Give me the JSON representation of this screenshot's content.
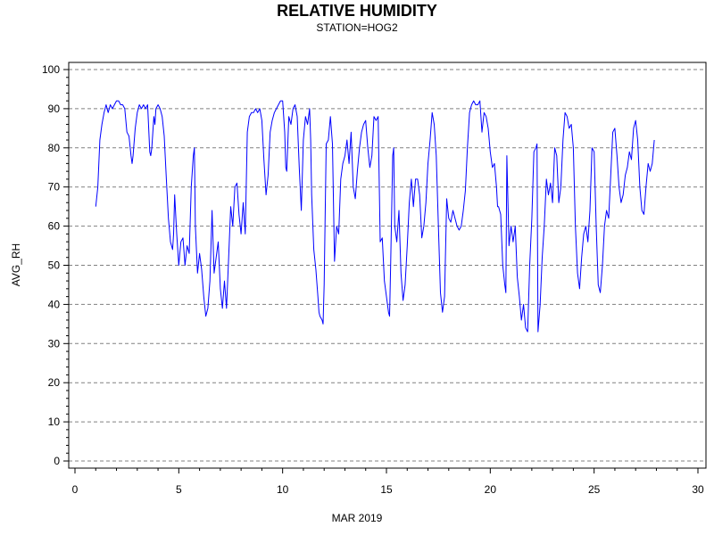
{
  "chart_data": {
    "type": "line",
    "title": "RELATIVE HUMIDITY",
    "subtitle": "STATION=HOG2",
    "xlabel": "MAR 2019",
    "ylabel": "AVG_RH",
    "xlim": [
      0,
      30
    ],
    "ylim": [
      0,
      100
    ],
    "x_ticks": [
      0,
      5,
      10,
      15,
      20,
      25,
      30
    ],
    "y_ticks": [
      0,
      10,
      20,
      30,
      40,
      50,
      60,
      70,
      80,
      90,
      100
    ],
    "grid": "horizontal dashed",
    "series": [
      {
        "color": "#0000ff",
        "points": [
          [
            1.0,
            65
          ],
          [
            1.1,
            70
          ],
          [
            1.2,
            82
          ],
          [
            1.3,
            86
          ],
          [
            1.4,
            89
          ],
          [
            1.5,
            91
          ],
          [
            1.6,
            89
          ],
          [
            1.7,
            91
          ],
          [
            1.8,
            90
          ],
          [
            1.9,
            91
          ],
          [
            2.0,
            92
          ],
          [
            2.1,
            92
          ],
          [
            2.2,
            91
          ],
          [
            2.3,
            91
          ],
          [
            2.4,
            90
          ],
          [
            2.5,
            84
          ],
          [
            2.6,
            83
          ],
          [
            2.7,
            78
          ],
          [
            2.75,
            76
          ],
          [
            2.8,
            78
          ],
          [
            2.9,
            85
          ],
          [
            3.0,
            89
          ],
          [
            3.1,
            91
          ],
          [
            3.2,
            90
          ],
          [
            3.3,
            91
          ],
          [
            3.4,
            90
          ],
          [
            3.5,
            91
          ],
          [
            3.6,
            79
          ],
          [
            3.65,
            78
          ],
          [
            3.7,
            80
          ],
          [
            3.8,
            88
          ],
          [
            3.85,
            86
          ],
          [
            3.9,
            90
          ],
          [
            4.0,
            91
          ],
          [
            4.1,
            90
          ],
          [
            4.2,
            88
          ],
          [
            4.3,
            83
          ],
          [
            4.4,
            72
          ],
          [
            4.5,
            62
          ],
          [
            4.6,
            56
          ],
          [
            4.7,
            54
          ],
          [
            4.75,
            58
          ],
          [
            4.8,
            68
          ],
          [
            4.9,
            58
          ],
          [
            5.0,
            50
          ],
          [
            5.1,
            56
          ],
          [
            5.2,
            57
          ],
          [
            5.3,
            50
          ],
          [
            5.4,
            55
          ],
          [
            5.5,
            53
          ],
          [
            5.6,
            70
          ],
          [
            5.7,
            78
          ],
          [
            5.75,
            80
          ],
          [
            5.8,
            60
          ],
          [
            5.9,
            48
          ],
          [
            6.0,
            53
          ],
          [
            6.1,
            49
          ],
          [
            6.2,
            42
          ],
          [
            6.3,
            37
          ],
          [
            6.4,
            39
          ],
          [
            6.5,
            46
          ],
          [
            6.6,
            64
          ],
          [
            6.7,
            48
          ],
          [
            6.8,
            52
          ],
          [
            6.9,
            56
          ],
          [
            7.0,
            44
          ],
          [
            7.1,
            39
          ],
          [
            7.2,
            46
          ],
          [
            7.3,
            39
          ],
          [
            7.4,
            52
          ],
          [
            7.5,
            65
          ],
          [
            7.6,
            60
          ],
          [
            7.7,
            70
          ],
          [
            7.8,
            71
          ],
          [
            7.9,
            63
          ],
          [
            8.0,
            58
          ],
          [
            8.1,
            66
          ],
          [
            8.2,
            58
          ],
          [
            8.3,
            84
          ],
          [
            8.4,
            88
          ],
          [
            8.5,
            89
          ],
          [
            8.6,
            89
          ],
          [
            8.7,
            90
          ],
          [
            8.8,
            89
          ],
          [
            8.9,
            90
          ],
          [
            9.0,
            87
          ],
          [
            9.1,
            77
          ],
          [
            9.2,
            68
          ],
          [
            9.3,
            73
          ],
          [
            9.4,
            84
          ],
          [
            9.5,
            87
          ],
          [
            9.6,
            89
          ],
          [
            9.7,
            90
          ],
          [
            9.8,
            91
          ],
          [
            9.9,
            92
          ],
          [
            10.0,
            92
          ],
          [
            10.1,
            84
          ],
          [
            10.15,
            75
          ],
          [
            10.2,
            74
          ],
          [
            10.3,
            88
          ],
          [
            10.4,
            86
          ],
          [
            10.5,
            90
          ],
          [
            10.6,
            91
          ],
          [
            10.7,
            88
          ],
          [
            10.8,
            75
          ],
          [
            10.9,
            64
          ],
          [
            11.0,
            82
          ],
          [
            11.1,
            88
          ],
          [
            11.2,
            86
          ],
          [
            11.3,
            90
          ],
          [
            11.35,
            82
          ],
          [
            11.4,
            68
          ],
          [
            11.5,
            54
          ],
          [
            11.6,
            49
          ],
          [
            11.7,
            42
          ],
          [
            11.75,
            38
          ],
          [
            11.8,
            37
          ],
          [
            11.9,
            36
          ],
          [
            11.95,
            35
          ],
          [
            12.0,
            45
          ],
          [
            12.1,
            81
          ],
          [
            12.2,
            82
          ],
          [
            12.3,
            88
          ],
          [
            12.4,
            81
          ],
          [
            12.5,
            51
          ],
          [
            12.6,
            60
          ],
          [
            12.7,
            58
          ],
          [
            12.8,
            72
          ],
          [
            12.9,
            76
          ],
          [
            13.0,
            78
          ],
          [
            13.1,
            82
          ],
          [
            13.2,
            76
          ],
          [
            13.3,
            84
          ],
          [
            13.4,
            70
          ],
          [
            13.5,
            67
          ],
          [
            13.6,
            74
          ],
          [
            13.7,
            80
          ],
          [
            13.8,
            84
          ],
          [
            13.9,
            86
          ],
          [
            14.0,
            87
          ],
          [
            14.1,
            80
          ],
          [
            14.2,
            75
          ],
          [
            14.3,
            78
          ],
          [
            14.4,
            88
          ],
          [
            14.5,
            87
          ],
          [
            14.6,
            88
          ],
          [
            14.7,
            56
          ],
          [
            14.8,
            57
          ],
          [
            14.9,
            46
          ],
          [
            15.0,
            42
          ],
          [
            15.1,
            38
          ],
          [
            15.15,
            37
          ],
          [
            15.2,
            50
          ],
          [
            15.3,
            78
          ],
          [
            15.35,
            80
          ],
          [
            15.4,
            60
          ],
          [
            15.5,
            56
          ],
          [
            15.6,
            64
          ],
          [
            15.7,
            48
          ],
          [
            15.8,
            41
          ],
          [
            15.9,
            45
          ],
          [
            16.0,
            55
          ],
          [
            16.1,
            66
          ],
          [
            16.2,
            72
          ],
          [
            16.3,
            65
          ],
          [
            16.4,
            72
          ],
          [
            16.5,
            72
          ],
          [
            16.6,
            68
          ],
          [
            16.7,
            57
          ],
          [
            16.8,
            60
          ],
          [
            16.9,
            66
          ],
          [
            17.0,
            76
          ],
          [
            17.1,
            82
          ],
          [
            17.2,
            89
          ],
          [
            17.3,
            86
          ],
          [
            17.4,
            78
          ],
          [
            17.5,
            60
          ],
          [
            17.6,
            43
          ],
          [
            17.7,
            38
          ],
          [
            17.8,
            42
          ],
          [
            17.9,
            67
          ],
          [
            18.0,
            62
          ],
          [
            18.1,
            61
          ],
          [
            18.2,
            64
          ],
          [
            18.3,
            62
          ],
          [
            18.4,
            60
          ],
          [
            18.5,
            59
          ],
          [
            18.6,
            60
          ],
          [
            18.7,
            64
          ],
          [
            18.8,
            69
          ],
          [
            18.9,
            80
          ],
          [
            19.0,
            89
          ],
          [
            19.1,
            91
          ],
          [
            19.2,
            92
          ],
          [
            19.3,
            91
          ],
          [
            19.4,
            91
          ],
          [
            19.5,
            92
          ],
          [
            19.6,
            84
          ],
          [
            19.7,
            89
          ],
          [
            19.8,
            88
          ],
          [
            19.9,
            85
          ],
          [
            20.0,
            79
          ],
          [
            20.1,
            75
          ],
          [
            20.2,
            76
          ],
          [
            20.3,
            70
          ],
          [
            20.35,
            65
          ],
          [
            20.4,
            65
          ],
          [
            20.5,
            63
          ],
          [
            20.6,
            50
          ],
          [
            20.7,
            45
          ],
          [
            20.75,
            43
          ],
          [
            20.8,
            78
          ],
          [
            20.9,
            55
          ],
          [
            21.0,
            60
          ],
          [
            21.1,
            56
          ],
          [
            21.2,
            60
          ],
          [
            21.3,
            47
          ],
          [
            21.4,
            42
          ],
          [
            21.5,
            36
          ],
          [
            21.6,
            40
          ],
          [
            21.7,
            34
          ],
          [
            21.8,
            33
          ],
          [
            21.9,
            50
          ],
          [
            22.0,
            62
          ],
          [
            22.1,
            79
          ],
          [
            22.2,
            80
          ],
          [
            22.25,
            81
          ],
          [
            22.3,
            33
          ],
          [
            22.4,
            40
          ],
          [
            22.5,
            52
          ],
          [
            22.6,
            60
          ],
          [
            22.7,
            72
          ],
          [
            22.8,
            68
          ],
          [
            22.9,
            71
          ],
          [
            23.0,
            66
          ],
          [
            23.1,
            80
          ],
          [
            23.2,
            78
          ],
          [
            23.3,
            66
          ],
          [
            23.4,
            70
          ],
          [
            23.5,
            82
          ],
          [
            23.6,
            89
          ],
          [
            23.7,
            88
          ],
          [
            23.8,
            85
          ],
          [
            23.9,
            86
          ],
          [
            24.0,
            80
          ],
          [
            24.1,
            60
          ],
          [
            24.2,
            48
          ],
          [
            24.3,
            44
          ],
          [
            24.4,
            52
          ],
          [
            24.5,
            58
          ],
          [
            24.6,
            60
          ],
          [
            24.7,
            56
          ],
          [
            24.8,
            64
          ],
          [
            24.9,
            80
          ],
          [
            25.0,
            79
          ],
          [
            25.1,
            60
          ],
          [
            25.2,
            45
          ],
          [
            25.3,
            43
          ],
          [
            25.4,
            50
          ],
          [
            25.5,
            60
          ],
          [
            25.6,
            64
          ],
          [
            25.7,
            62
          ],
          [
            25.8,
            73
          ],
          [
            25.9,
            84
          ],
          [
            26.0,
            85
          ],
          [
            26.1,
            78
          ],
          [
            26.2,
            70
          ],
          [
            26.3,
            66
          ],
          [
            26.4,
            68
          ],
          [
            26.5,
            73
          ],
          [
            26.6,
            75
          ],
          [
            26.7,
            79
          ],
          [
            26.8,
            77
          ],
          [
            26.9,
            85
          ],
          [
            27.0,
            87
          ],
          [
            27.1,
            82
          ],
          [
            27.2,
            70
          ],
          [
            27.3,
            64
          ],
          [
            27.4,
            63
          ],
          [
            27.5,
            70
          ],
          [
            27.6,
            76
          ],
          [
            27.7,
            74
          ],
          [
            27.8,
            76
          ],
          [
            27.9,
            82
          ]
        ]
      }
    ]
  }
}
